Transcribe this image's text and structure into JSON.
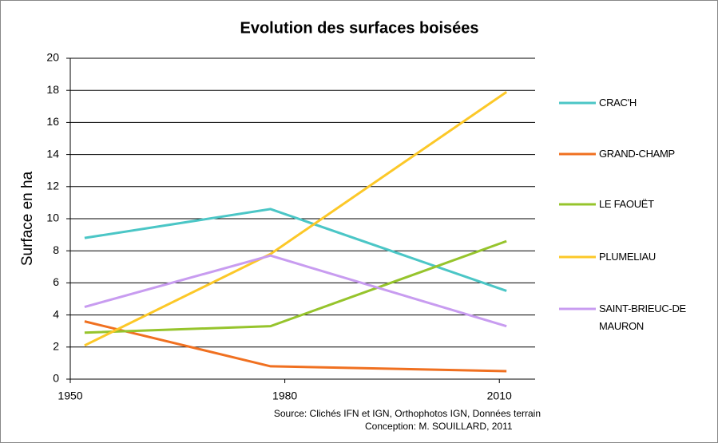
{
  "chart_data": {
    "type": "line",
    "title": "Evolution des surfaces boisées",
    "y_label": "Surface en ha",
    "x": [
      1952,
      1978,
      2011
    ],
    "xlim": [
      1950,
      2015
    ],
    "xticks": [
      1950,
      1980,
      2010
    ],
    "ylim": [
      0,
      20
    ],
    "yticks": [
      0,
      2,
      4,
      6,
      8,
      10,
      12,
      14,
      16,
      18,
      20
    ],
    "grid": true,
    "legend": "right",
    "series": [
      {
        "name": "CRAC'H",
        "color": "#4bc6c6",
        "values": [
          8.8,
          10.6,
          5.5
        ]
      },
      {
        "name": "GRAND-CHAMP",
        "color": "#f07020",
        "values": [
          3.6,
          0.8,
          0.5
        ]
      },
      {
        "name": "LE FAOUËT",
        "color": "#96c42c",
        "values": [
          2.9,
          3.3,
          8.6
        ]
      },
      {
        "name": "PLUMELIAU",
        "color": "#fcc828",
        "values": [
          2.1,
          7.8,
          17.9
        ]
      },
      {
        "name": "SAINT-BRIEUC-DE MAURON",
        "color": "#c89cf0",
        "values": [
          4.5,
          7.7,
          3.3
        ]
      }
    ],
    "source": [
      "Source: Clichés IFN et IGN, Orthophotos IGN, Données terrain",
      "Conception: M. SOUILLARD, 2011"
    ]
  }
}
